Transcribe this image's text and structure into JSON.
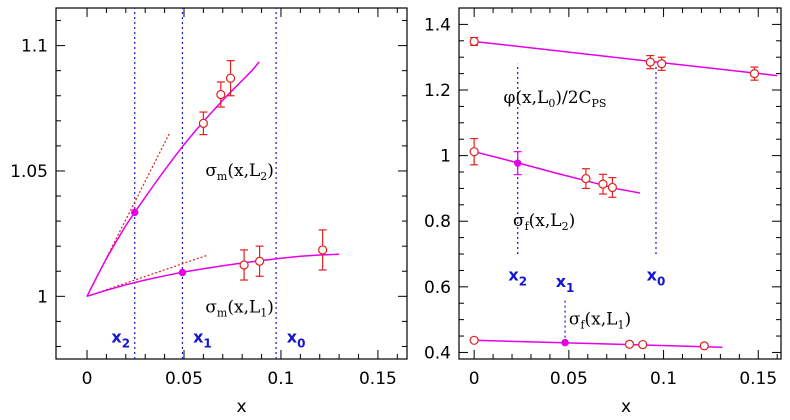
{
  "chart_data": [
    {
      "type": "scatter",
      "xlabel": "x",
      "ylabel": "",
      "xlim": [
        -0.016,
        0.165
      ],
      "ylim": [
        0.975,
        1.115
      ],
      "xticks": [
        "0",
        "0.05",
        "0.1",
        "0.15"
      ],
      "xtick_values": [
        0,
        0.05,
        0.1,
        0.15
      ],
      "yticks": [
        "1",
        "1.05",
        "1.1"
      ],
      "ytick_values": [
        1.0,
        1.05,
        1.1
      ],
      "colors": {
        "data": "#e02020",
        "fit": "#e600e6",
        "marker": "#1515d0"
      },
      "vlines": [
        {
          "label": "x",
          "sub": "2",
          "x": 0.0246,
          "label_y": 0.9815
        },
        {
          "label": "x",
          "sub": "1",
          "x": 0.0492,
          "label_y": 0.9815
        },
        {
          "label": "x",
          "sub": "0",
          "x": 0.0975,
          "label_y": 0.9815
        }
      ],
      "series": [
        {
          "label_main": "σ",
          "label_sub": "m",
          "label_arg": "(x,L",
          "label_arg_sub": "2",
          "label_close": ")",
          "label_pos": [
            0.061,
            1.048
          ],
          "points": [
            {
              "x": 0.06,
              "y": 1.069,
              "err": 0.0045
            },
            {
              "x": 0.069,
              "y": 1.0805,
              "err": 0.005
            },
            {
              "x": 0.074,
              "y": 1.087,
              "err": 0.007
            }
          ],
          "star": {
            "x": 0.0246,
            "y": 1.0335
          },
          "fit": [
            [
              0,
              1.0
            ],
            [
              0.005,
              1.0077
            ],
            [
              0.01,
              1.015
            ],
            [
              0.015,
              1.0218
            ],
            [
              0.02,
              1.0282
            ],
            [
              0.0246,
              1.0335
            ],
            [
              0.03,
              1.0395
            ],
            [
              0.035,
              1.045
            ],
            [
              0.04,
              1.0503
            ],
            [
              0.045,
              1.0555
            ],
            [
              0.05,
              1.0605
            ],
            [
              0.055,
              1.0652
            ],
            [
              0.06,
              1.0697
            ],
            [
              0.065,
              1.074
            ],
            [
              0.07,
              1.0782
            ],
            [
              0.075,
              1.0822
            ],
            [
              0.08,
              1.0861
            ],
            [
              0.085,
              1.09
            ],
            [
              0.0888,
              1.0935
            ]
          ],
          "tangent": [
            [
              0,
              1.0
            ],
            [
              0.0425,
              1.065
            ]
          ]
        },
        {
          "label_main": "σ",
          "label_sub": "m",
          "label_arg": "(x,L",
          "label_arg_sub": "1",
          "label_close": ")",
          "label_pos": [
            0.061,
            0.9935
          ],
          "points": [
            {
              "x": 0.081,
              "y": 1.0125,
              "err": 0.006
            },
            {
              "x": 0.089,
              "y": 1.014,
              "err": 0.006
            },
            {
              "x": 0.1215,
              "y": 1.0185,
              "err": 0.008
            }
          ],
          "star": {
            "x": 0.0492,
            "y": 1.0095
          },
          "fit": [
            [
              0,
              1.0
            ],
            [
              0.01,
              1.0024
            ],
            [
              0.02,
              1.0046
            ],
            [
              0.03,
              1.0065
            ],
            [
              0.04,
              1.0082
            ],
            [
              0.0492,
              1.0096
            ],
            [
              0.06,
              1.011
            ],
            [
              0.07,
              1.0122
            ],
            [
              0.08,
              1.0133
            ],
            [
              0.09,
              1.0143
            ],
            [
              0.1,
              1.0152
            ],
            [
              0.11,
              1.016
            ],
            [
              0.12,
              1.0165
            ],
            [
              0.13,
              1.0168
            ]
          ],
          "tangent": [
            [
              0,
              1.0
            ],
            [
              0.0625,
              1.0165
            ]
          ]
        }
      ]
    },
    {
      "type": "scatter",
      "xlabel": "x",
      "ylabel": "",
      "xlim": [
        -0.008,
        0.162
      ],
      "ylim": [
        0.38,
        1.45
      ],
      "xticks": [
        "0",
        "0.05",
        "0.1",
        "0.15"
      ],
      "xtick_values": [
        0,
        0.05,
        0.1,
        0.15
      ],
      "yticks": [
        "0.4",
        "0.6",
        "0.8",
        "1",
        "1.2",
        "1.4"
      ],
      "ytick_values": [
        0.4,
        0.6,
        0.8,
        1.0,
        1.2,
        1.4
      ],
      "colors": {
        "data": "#e02020",
        "fit": "#e600e6",
        "marker": "#1515d0"
      },
      "vlines": [
        {
          "label": "x",
          "sub": "2",
          "x": 0.023,
          "y_from": 0.7,
          "y_to": 1.28,
          "label_y": 0.62
        },
        {
          "label": "x",
          "sub": "1",
          "x": 0.048,
          "y_from": 0.43,
          "y_to": 0.56,
          "label_y": 0.6
        },
        {
          "label": "x",
          "sub": "0",
          "x": 0.096,
          "y_from": 0.7,
          "y_to": 1.28,
          "label_y": 0.62
        }
      ],
      "series": [
        {
          "label_main": "φ",
          "label_sub": "",
          "label_arg": "(x,L",
          "label_arg_sub": "0",
          "label_close": ")/2C",
          "label_tail_sub": "PS",
          "label_pos": [
            0.0155,
            1.16
          ],
          "points": [
            {
              "x": 0.0,
              "y": 1.348,
              "err": 0.012
            },
            {
              "x": 0.093,
              "y": 1.285,
              "err": 0.02
            },
            {
              "x": 0.099,
              "y": 1.28,
              "err": 0.02
            },
            {
              "x": 0.148,
              "y": 1.25,
              "err": 0.02
            }
          ],
          "fit": [
            [
              0,
              1.348
            ],
            [
              0.16,
              1.244
            ]
          ]
        },
        {
          "label_main": "σ",
          "label_sub": "f",
          "label_arg": "(x,L",
          "label_arg_sub": "2",
          "label_close": ")",
          "label_pos": [
            0.0205,
            0.785
          ],
          "points": [
            {
              "x": 0.0,
              "y": 1.012,
              "err": 0.04
            },
            {
              "x": 0.059,
              "y": 0.93,
              "err": 0.03
            },
            {
              "x": 0.068,
              "y": 0.913,
              "err": 0.03
            },
            {
              "x": 0.073,
              "y": 0.903,
              "err": 0.03
            }
          ],
          "star": {
            "x": 0.023,
            "y": 0.977,
            "err": 0.035
          },
          "fit": [
            [
              0,
              1.012
            ],
            [
              0.015,
              0.99
            ],
            [
              0.03,
              0.967
            ],
            [
              0.045,
              0.944
            ],
            [
              0.06,
              0.922
            ],
            [
              0.075,
              0.899
            ],
            [
              0.0875,
              0.886
            ]
          ]
        },
        {
          "label_main": "σ",
          "label_sub": "f",
          "label_arg": "(x,L",
          "label_arg_sub": "1",
          "label_close": ")",
          "label_pos": [
            0.05,
            0.485
          ],
          "points": [
            {
              "x": 0.0,
              "y": 0.437,
              "err": 0.006
            },
            {
              "x": 0.082,
              "y": 0.425,
              "err": 0.006
            },
            {
              "x": 0.089,
              "y": 0.424,
              "err": 0.006
            },
            {
              "x": 0.1215,
              "y": 0.42,
              "err": 0.006
            }
          ],
          "star": {
            "x": 0.048,
            "y": 0.43
          },
          "fit": [
            [
              0,
              0.437
            ],
            [
              0.131,
              0.416
            ]
          ]
        }
      ]
    }
  ]
}
